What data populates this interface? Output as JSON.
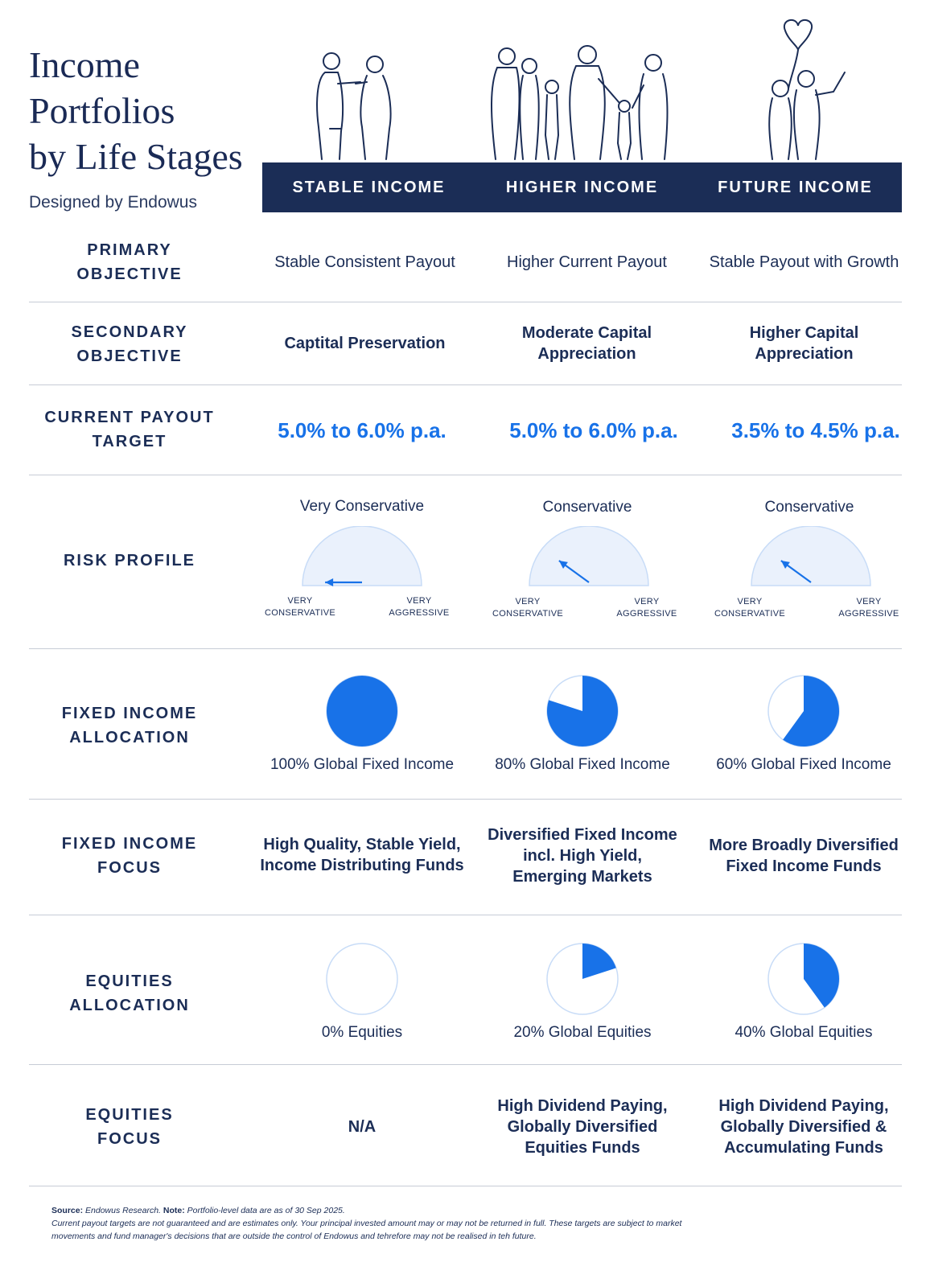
{
  "title": "Income\nPortfolios\nby Life Stages",
  "subtitle": "Designed by Endowus",
  "columns": [
    "STABLE INCOME",
    "HIGHER INCOME",
    "FUTURE INCOME"
  ],
  "accent_color": "#1872e8",
  "navy_color": "#1b2d56",
  "illustrations": [
    "elderly-couple-icon",
    "family-icon",
    "young-couple-balloon-icon"
  ],
  "rows": {
    "primary_objective": {
      "label": "PRIMARY\nOBJECTIVE",
      "values": [
        "Stable Consistent Payout",
        "Higher Current Payout",
        "Stable Payout with Growth"
      ]
    },
    "secondary_objective": {
      "label": "SECONDARY\nOBJECTIVE",
      "values": [
        "Captital Preservation",
        "Moderate Capital\nAppreciation",
        "Higher Capital\nAppreciation"
      ]
    },
    "payout_target": {
      "label": "CURRENT PAYOUT\nTARGET",
      "values": [
        "5.0% to 6.0% p.a.",
        "5.0% to 6.0% p.a.",
        "3.5% to 4.5% p.a."
      ]
    },
    "risk_profile": {
      "label": "RISK PROFILE",
      "values": [
        "Very Conservative",
        "Conservative",
        "Conservative"
      ],
      "levels": [
        0.0,
        0.2,
        0.2
      ],
      "scale_low": "VERY\nCONSERVATIVE",
      "scale_high": "VERY\nAGGRESSIVE"
    },
    "fixed_income_allocation": {
      "label": "FIXED INCOME\nALLOCATION",
      "values": [
        "100% Global Fixed Income",
        "80% Global Fixed Income",
        "60% Global Fixed Income"
      ],
      "percent": [
        100,
        80,
        60
      ]
    },
    "fixed_income_focus": {
      "label": "FIXED INCOME\nFOCUS",
      "values": [
        "High Quality, Stable Yield,\nIncome Distributing Funds",
        "Diversified Fixed Income\nincl. High Yield,\nEmerging Markets",
        "More Broadly Diversified\nFixed Income Funds"
      ]
    },
    "equities_allocation": {
      "label": "EQUITIES\nALLOCATION",
      "values": [
        "0% Equities",
        "20% Global Equities",
        "40% Global Equities"
      ],
      "percent": [
        0,
        20,
        40
      ]
    },
    "equities_focus": {
      "label": "EQUITIES\nFOCUS",
      "values": [
        "N/A",
        "High Dividend Paying,\nGlobally Diversified\nEquities Funds",
        "High Dividend Paying,\nGlobally Diversified &\nAccumulating Funds"
      ]
    }
  },
  "footnote": {
    "source_label": "Source:",
    "source_text": " Endowus Research. ",
    "note_label": "Note:",
    "note_text": " Portfolio-level data are as of 30 Sep 2025.",
    "disclaimer": "Current payout targets are not guaranteed and are estimates only. Your principal invested amount may or may not be returned in full. These targets are subject to market movements and fund manager's decisions that are outside the control of Endowus and tehrefore may not be realised in teh future."
  }
}
